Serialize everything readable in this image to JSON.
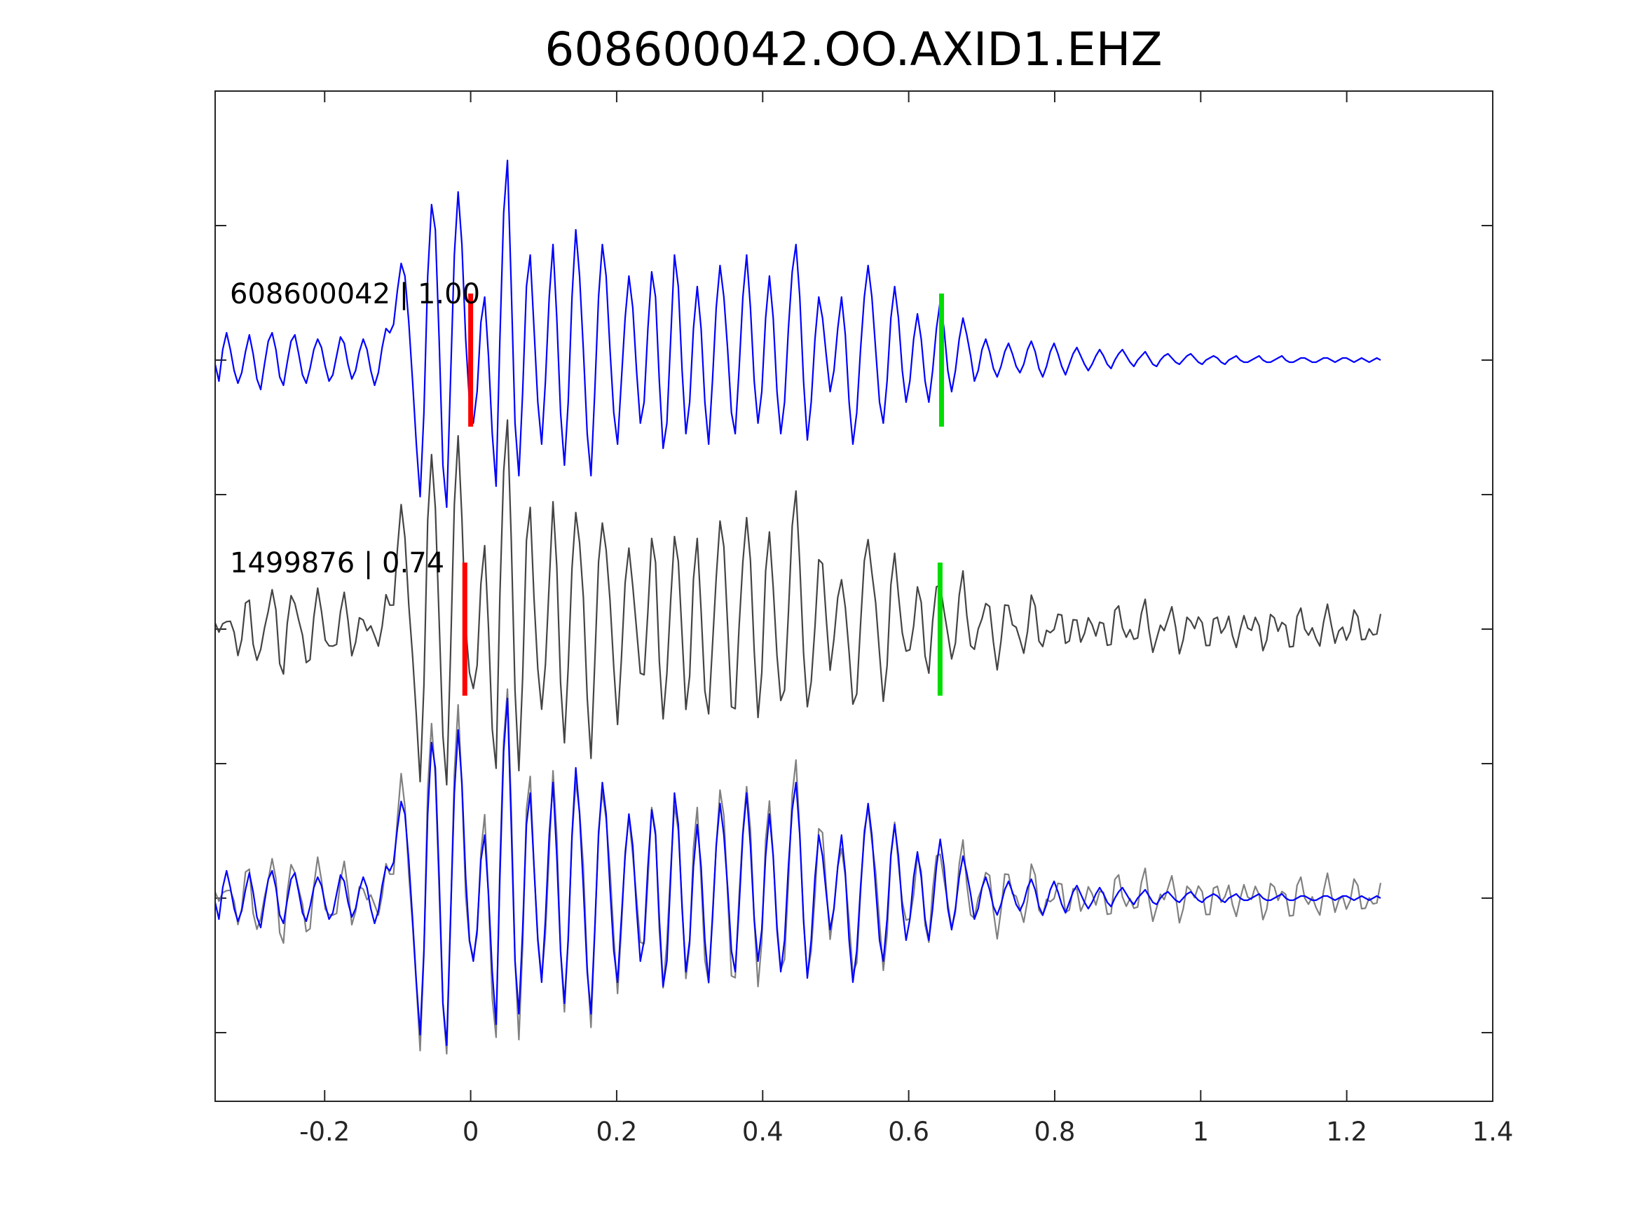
{
  "chart_data": {
    "type": "line",
    "title": "608600042.OO.AXID1.EHZ",
    "xlabel": "",
    "ylabel": "",
    "xlim": [
      -0.35,
      1.4
    ],
    "xticks": [
      -0.2,
      0,
      0.2,
      0.4,
      0.6,
      0.8,
      1,
      1.2,
      1.4
    ],
    "xtick_labels": [
      "-0.2",
      "0",
      "0.2",
      "0.4",
      "0.6",
      "0.8",
      "1",
      "1.2",
      "1.4"
    ],
    "grid": false,
    "legend": "none",
    "panels": [
      {
        "label": "608600042 | 1.00",
        "trace": "template",
        "color": "#0000ff",
        "p_pick": 0.0,
        "s_pick": 0.645
      },
      {
        "label": "1499876 | 0.74",
        "trace": "detection",
        "color": "#444444",
        "p_pick": -0.008,
        "s_pick": 0.643
      },
      {
        "label": "",
        "trace": "overlay",
        "colors": [
          "#808080",
          "#0000ff"
        ]
      }
    ],
    "pick_colors": {
      "p": "#ff0000",
      "s": "#00dd00"
    },
    "approximate_waveform": {
      "sample_interval_s": 0.0052,
      "template": [
        -0.02,
        -0.1,
        0.05,
        0.13,
        0.05,
        -0.05,
        -0.11,
        -0.06,
        0.04,
        0.12,
        0.03,
        -0.09,
        -0.14,
        -0.02,
        0.09,
        0.13,
        0.05,
        -0.08,
        -0.12,
        -0.01,
        0.09,
        0.12,
        0.03,
        -0.07,
        -0.11,
        -0.04,
        0.05,
        0.1,
        0.06,
        -0.03,
        -0.1,
        -0.07,
        0.02,
        0.11,
        0.08,
        -0.02,
        -0.09,
        -0.05,
        0.04,
        0.1,
        0.05,
        -0.05,
        -0.12,
        -0.06,
        0.06,
        0.15,
        0.13,
        0.17,
        0.33,
        0.46,
        0.4,
        0.18,
        -0.1,
        -0.4,
        -0.65,
        -0.25,
        0.4,
        0.74,
        0.62,
        0.1,
        -0.5,
        -0.7,
        -0.1,
        0.5,
        0.8,
        0.55,
        0.1,
        -0.2,
        -0.3,
        -0.15,
        0.18,
        0.3,
        0.02,
        -0.35,
        -0.6,
        0.1,
        0.7,
        0.95,
        0.35,
        -0.3,
        -0.55,
        -0.15,
        0.35,
        0.5,
        0.15,
        -0.2,
        -0.4,
        -0.1,
        0.3,
        0.55,
        0.2,
        -0.25,
        -0.5,
        -0.2,
        0.3,
        0.62,
        0.4,
        0.05,
        -0.35,
        -0.55,
        -0.15,
        0.3,
        0.55,
        0.4,
        0.05,
        -0.25,
        -0.4,
        -0.1,
        0.2,
        0.4,
        0.25,
        -0.05,
        -0.3,
        -0.2,
        0.15,
        0.42,
        0.3,
        -0.1,
        -0.42,
        -0.3,
        0.1,
        0.5,
        0.35,
        -0.05,
        -0.35,
        -0.2,
        0.15,
        0.35,
        0.15,
        -0.2,
        -0.4,
        -0.1,
        0.25,
        0.45,
        0.3,
        0.05,
        -0.25,
        -0.35,
        -0.05,
        0.3,
        0.5,
        0.25,
        -0.1,
        -0.3,
        -0.15,
        0.2,
        0.4,
        0.2,
        -0.15,
        -0.35,
        -0.2,
        0.15,
        0.42,
        0.55,
        0.3,
        -0.1,
        -0.38,
        -0.2,
        0.1,
        0.3,
        0.2,
        0.02,
        -0.15,
        -0.05,
        0.15,
        0.3,
        0.12,
        -0.2,
        -0.4,
        -0.25,
        0.05,
        0.3,
        0.45,
        0.3,
        0.05,
        -0.2,
        -0.3,
        -0.1,
        0.2,
        0.35,
        0.2,
        -0.05,
        -0.2,
        -0.1,
        0.1,
        0.22,
        0.1,
        -0.1,
        -0.2,
        -0.05,
        0.15,
        0.28,
        0.15,
        -0.05,
        -0.15,
        -0.05,
        0.1,
        0.2,
        0.12,
        0.02,
        -0.1,
        -0.05,
        0.05,
        0.1,
        0.04,
        -0.04,
        -0.08,
        -0.03,
        0.04,
        0.08,
        0.03,
        -0.03,
        -0.06,
        -0.02,
        0.05,
        0.09,
        0.04,
        -0.04,
        -0.08,
        -0.03,
        0.04,
        0.08,
        0.03,
        -0.03,
        -0.07,
        -0.02,
        0.03,
        0.06,
        0.02,
        -0.02,
        -0.05,
        -0.02,
        0.02,
        0.05,
        0.02,
        -0.02,
        -0.04,
        0.0,
        0.03,
        0.05,
        0.02,
        -0.01,
        -0.03,
        0.0,
        0.02,
        0.04,
        0.01,
        -0.02,
        -0.03,
        0.0,
        0.02,
        0.03,
        0.01,
        -0.01,
        -0.02,
        0.0,
        0.02,
        0.03,
        0.01,
        -0.01,
        -0.02,
        0.0,
        0.01,
        0.02,
        0.01,
        -0.01,
        -0.02,
        0.0,
        0.01,
        0.02,
        0.0,
        -0.01,
        -0.01,
        0.0,
        0.01,
        0.02,
        0.0,
        -0.01,
        -0.01,
        0.0,
        0.01,
        0.02,
        0.0,
        -0.01,
        -0.01,
        0.0,
        0.01,
        0.01,
        0.0,
        -0.01,
        -0.01,
        0.0,
        0.01,
        0.01,
        0.0,
        -0.01,
        0.0,
        0.01,
        0.01,
        0.0,
        -0.01,
        0.0,
        0.01,
        0.0,
        -0.01,
        0.0,
        0.01,
        0.0
      ]
    }
  }
}
